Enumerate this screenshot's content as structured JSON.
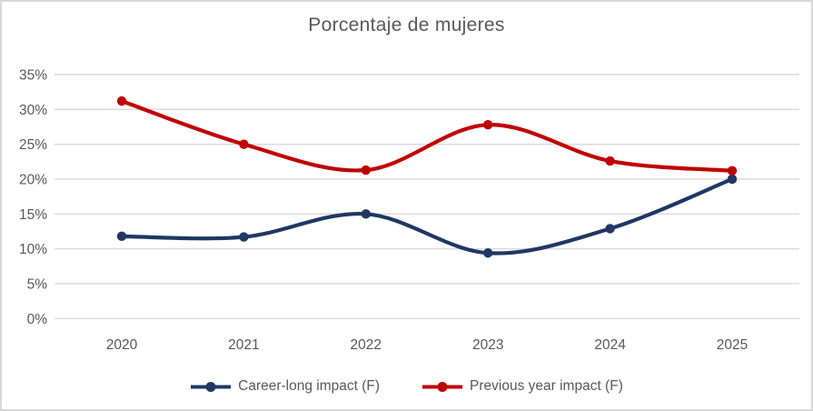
{
  "frame": {
    "background": "#ffffff",
    "border_color": "#d8d8d8"
  },
  "chart_data": {
    "type": "line",
    "title": "Porcentaje de mujeres",
    "categories": [
      "2020",
      "2021",
      "2022",
      "2023",
      "2024",
      "2025"
    ],
    "series": [
      {
        "name": "Career-long impact (F)",
        "color": "#1F3864",
        "values": [
          11.8,
          11.7,
          15.0,
          9.4,
          12.9,
          20.0
        ]
      },
      {
        "name": "Previous year impact (F)",
        "color": "#C00000",
        "values": [
          31.2,
          25.0,
          21.3,
          27.8,
          22.6,
          21.2
        ]
      }
    ],
    "xlabel": "",
    "ylabel": "",
    "ylim": [
      0,
      35
    ],
    "ytick_step": 5,
    "ytick_suffix": "%",
    "grid": true,
    "smooth": true,
    "legend_position": "bottom",
    "marker": "circle",
    "text_color": "#595959",
    "grid_color": "#D9D9D9"
  }
}
